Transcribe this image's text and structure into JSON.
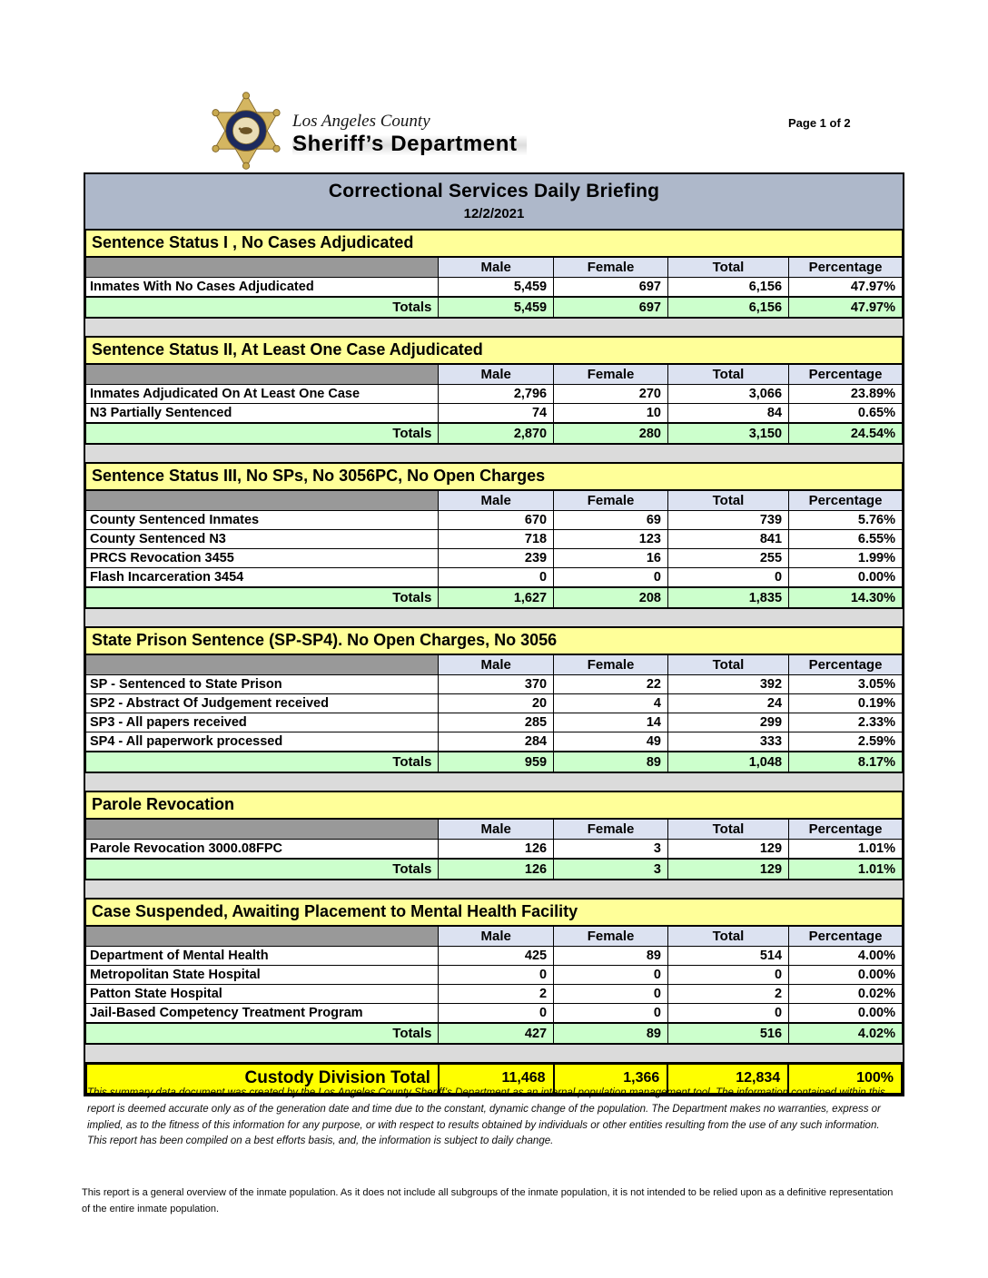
{
  "page": {
    "page_label": "Page 1 of 2",
    "logo": {
      "line1": "Los Angeles County",
      "line2": "Sheriff’s Department"
    },
    "title": "Correctional Services Daily Briefing",
    "date": "12/2/2021"
  },
  "columns": [
    "Male",
    "Female",
    "Total",
    "Percentage"
  ],
  "sections": [
    {
      "title": "Sentence Status I , No Cases Adjudicated",
      "rows": [
        {
          "label": "Inmates With No Cases Adjudicated",
          "male": "5,459",
          "female": "697",
          "total": "6,156",
          "percentage": "47.97%"
        }
      ],
      "totals": {
        "label": "Totals",
        "male": "5,459",
        "female": "697",
        "total": "6,156",
        "percentage": "47.97%"
      }
    },
    {
      "title": "Sentence Status II, At Least One Case Adjudicated",
      "rows": [
        {
          "label": "Inmates Adjudicated On At Least One Case",
          "male": "2,796",
          "female": "270",
          "total": "3,066",
          "percentage": "23.89%"
        },
        {
          "label": "N3 Partially Sentenced",
          "male": "74",
          "female": "10",
          "total": "84",
          "percentage": "0.65%"
        }
      ],
      "totals": {
        "label": "Totals",
        "male": "2,870",
        "female": "280",
        "total": "3,150",
        "percentage": "24.54%"
      }
    },
    {
      "title": "Sentence Status III, No SPs, No 3056PC, No Open Charges",
      "rows": [
        {
          "label": "County Sentenced Inmates",
          "male": "670",
          "female": "69",
          "total": "739",
          "percentage": "5.76%"
        },
        {
          "label": "County Sentenced N3",
          "male": "718",
          "female": "123",
          "total": "841",
          "percentage": "6.55%"
        },
        {
          "label": "PRCS Revocation 3455",
          "male": "239",
          "female": "16",
          "total": "255",
          "percentage": "1.99%"
        },
        {
          "label": "Flash Incarceration 3454",
          "male": "0",
          "female": "0",
          "total": "0",
          "percentage": "0.00%"
        }
      ],
      "totals": {
        "label": "Totals",
        "male": "1,627",
        "female": "208",
        "total": "1,835",
        "percentage": "14.30%"
      }
    },
    {
      "title": "State Prison Sentence (SP-SP4). No Open Charges, No 3056",
      "rows": [
        {
          "label": "SP - Sentenced to State Prison",
          "male": "370",
          "female": "22",
          "total": "392",
          "percentage": "3.05%"
        },
        {
          "label": "SP2 - Abstract Of Judgement received",
          "male": "20",
          "female": "4",
          "total": "24",
          "percentage": "0.19%"
        },
        {
          "label": "SP3 - All papers received",
          "male": "285",
          "female": "14",
          "total": "299",
          "percentage": "2.33%"
        },
        {
          "label": "SP4 - All paperwork processed",
          "male": "284",
          "female": "49",
          "total": "333",
          "percentage": "2.59%"
        }
      ],
      "totals": {
        "label": "Totals",
        "male": "959",
        "female": "89",
        "total": "1,048",
        "percentage": "8.17%"
      }
    },
    {
      "title": "Parole Revocation",
      "rows": [
        {
          "label": "Parole Revocation 3000.08FPC",
          "male": "126",
          "female": "3",
          "total": "129",
          "percentage": "1.01%"
        }
      ],
      "totals": {
        "label": "Totals",
        "male": "126",
        "female": "3",
        "total": "129",
        "percentage": "1.01%"
      }
    },
    {
      "title": "Case Suspended, Awaiting Placement to Mental Health Facility",
      "rows": [
        {
          "label": "Department of Mental Health",
          "male": "425",
          "female": "89",
          "total": "514",
          "percentage": "4.00%"
        },
        {
          "label": "Metropolitan State Hospital",
          "male": "0",
          "female": "0",
          "total": "0",
          "percentage": "0.00%"
        },
        {
          "label": "Patton State Hospital",
          "male": "2",
          "female": "0",
          "total": "2",
          "percentage": "0.02%"
        },
        {
          "label": "Jail-Based Competency Treatment Program",
          "male": "0",
          "female": "0",
          "total": "0",
          "percentage": "0.00%"
        }
      ],
      "totals": {
        "label": "Totals",
        "male": "427",
        "female": "89",
        "total": "516",
        "percentage": "4.02%"
      }
    }
  ],
  "grand_total": {
    "label": "Custody Division Total",
    "male": "11,468",
    "female": "1,366",
    "total": "12,834",
    "percentage": "100%"
  },
  "footnotes": {
    "disclaimer": "This summary data document was created by the Los Angeles County Sheriff’s Department as an internal population management tool.  The information contained within this report is deemed accurate only as of the generation date and time due to the constant, dynamic change of the population.  The Department makes no warranties, express or implied, as to the fitness of this information for any purpose, or with respect to results obtained by individuals or other entities resulting from the use of any such information.  This report has been compiled on a best efforts basis, and, the information is subject to daily change.",
    "overview": "This report is a general overview of the inmate population.  As it does not include all subgroups of the inmate population, it is not intended to be relied upon as a definitive representation of the entire inmate population."
  },
  "colors": {
    "yellow_header": "#FFFF99",
    "title_band": "#AEB8CA",
    "column_header": "#DCE2F1",
    "totals_green": "#CCFFCC",
    "grand_yellow": "#FFFF00",
    "corner_gray": "#999999",
    "gap_gray": "#DBDBDB",
    "badge_gold": "#D4B661",
    "badge_navy": "#1C2A5E"
  }
}
